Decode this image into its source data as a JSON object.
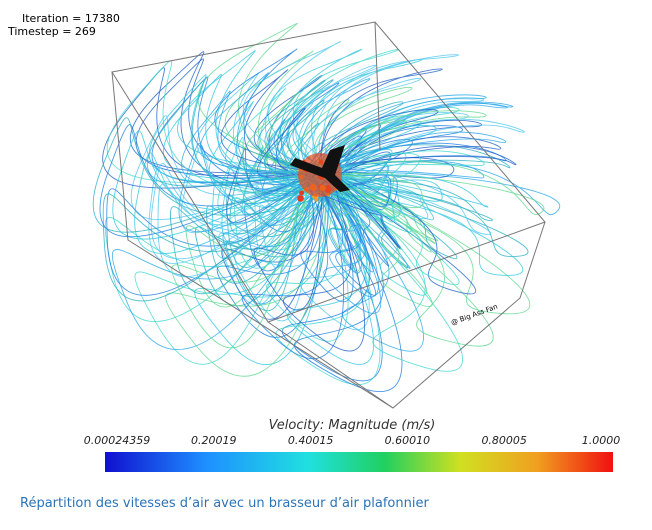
{
  "header": {
    "iteration": "Iteration = 17380",
    "timestep": "Timestep = 269"
  },
  "watermark": "@ Big Ass Fan",
  "colorbar": {
    "title": "Velocity: Magnitude (m/s)",
    "ticks": [
      "0.00024359",
      "0.20019",
      "0.40015",
      "0.60010",
      "0.80005",
      "1.0000"
    ]
  },
  "caption": "Répartition des vitesses d’air avec un brasseur d’air plafonnier"
}
